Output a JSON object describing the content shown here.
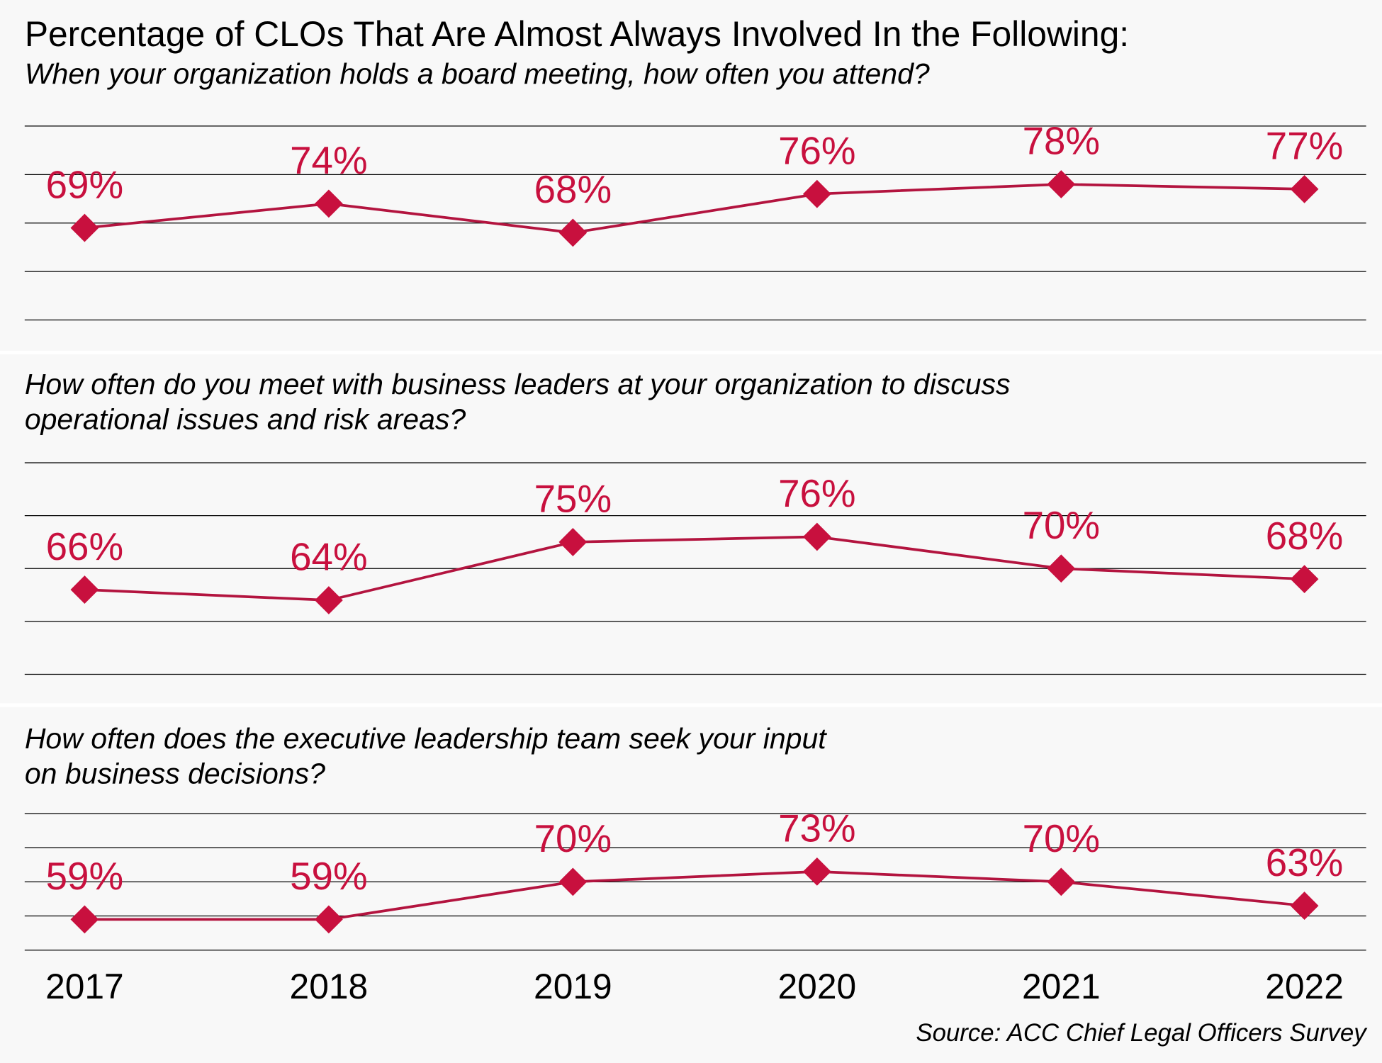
{
  "title": "Percentage of CLOs That Are Almost Always Involved In the Following:",
  "source": "Source: ACC Chief Legal Officers Survey",
  "colors": {
    "accent": "#c8103e",
    "line": "#b3143f",
    "grid": "#000000",
    "panel_bg": "#f8f8f8"
  },
  "chart_data": [
    {
      "type": "line",
      "subtitle_lines": [
        "When your organization holds a board meeting, how often you attend?"
      ],
      "categories": [
        "2017",
        "2018",
        "2019",
        "2020",
        "2021",
        "2022"
      ],
      "values": [
        69,
        74,
        68,
        76,
        78,
        77
      ],
      "data_labels": [
        "69%",
        "74%",
        "68%",
        "76%",
        "78%",
        "77%"
      ],
      "ylim": [
        50,
        90
      ],
      "grid": true,
      "marker": "diamond"
    },
    {
      "type": "line",
      "subtitle_lines": [
        "How often do you meet with business leaders at your organization to discuss",
        "operational issues and risk areas?"
      ],
      "categories": [
        "2017",
        "2018",
        "2019",
        "2020",
        "2021",
        "2022"
      ],
      "values": [
        66,
        64,
        75,
        76,
        70,
        68
      ],
      "data_labels": [
        "66%",
        "64%",
        "75%",
        "76%",
        "70%",
        "68%"
      ],
      "ylim": [
        50,
        90
      ],
      "grid": true,
      "marker": "diamond"
    },
    {
      "type": "line",
      "subtitle_lines": [
        "How often does the executive leadership team seek your input",
        "on business decisions?"
      ],
      "categories": [
        "2017",
        "2018",
        "2019",
        "2020",
        "2021",
        "2022"
      ],
      "values": [
        59,
        59,
        70,
        73,
        70,
        63
      ],
      "data_labels": [
        "59%",
        "59%",
        "70%",
        "73%",
        "70%",
        "63%"
      ],
      "ylim": [
        50,
        90
      ],
      "grid": true,
      "marker": "diamond"
    }
  ]
}
